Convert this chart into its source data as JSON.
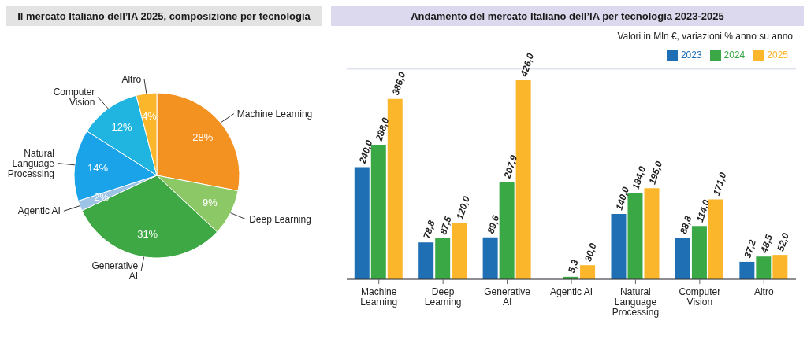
{
  "chart_data": [
    {
      "type": "pie",
      "title": "Il mercato Italiano dell’IA 2025, composizione per tecnologia",
      "categories": [
        "Machine Learning",
        "Deep Learning",
        "Generative AI",
        "Agentic AI",
        "Natural Language Processing",
        "Computer Vision",
        "Altro"
      ],
      "values": [
        28,
        9,
        31,
        2,
        14,
        12,
        4
      ],
      "colors": [
        "#f39121",
        "#8cc866",
        "#3ea844",
        "#9dc3e6",
        "#1aa3e8",
        "#1fb5e0",
        "#fbb62b"
      ],
      "value_labels": [
        "28%",
        "9%",
        "31%",
        "2%",
        "14%",
        "12%",
        "4%"
      ]
    },
    {
      "type": "bar",
      "title": "Andamento del mercato Italiano dell’IA per tecnologia 2023-2025",
      "subtitle": "Valori in Mln €, variazioni % anno su anno",
      "categories": [
        "Machine Learning",
        "Deep Learning",
        "Generative AI",
        "Agentic AI",
        "Natural Language Processing",
        "Computer Vision",
        "Altro"
      ],
      "series": [
        {
          "name": "2023",
          "color": "#1f6fb5",
          "values": [
            240.0,
            78.8,
            89.6,
            null,
            140.0,
            88.8,
            37.2
          ],
          "value_labels": [
            "240,0",
            "78,8",
            "89,6",
            null,
            "140,0",
            "88,8",
            "37,2"
          ]
        },
        {
          "name": "2024",
          "color": "#3aa845",
          "values": [
            288.0,
            87.5,
            207.9,
            5.3,
            184.0,
            114.0,
            48.5
          ],
          "value_labels": [
            "288,0",
            "87,5",
            "207,9",
            "5,3",
            "184,0",
            "114,0",
            "48,5"
          ]
        },
        {
          "name": "2025",
          "color": "#fbb62b",
          "values": [
            386.0,
            120.0,
            426.0,
            30.0,
            195.0,
            171.0,
            52.0
          ],
          "value_labels": [
            "386,0",
            "120,0",
            "426,0",
            "30,0",
            "195,0",
            "171,0",
            "52,0"
          ]
        }
      ],
      "ylim": [
        0,
        450
      ],
      "grid": "y",
      "legend": "top right",
      "tick_labels": "x"
    }
  ]
}
